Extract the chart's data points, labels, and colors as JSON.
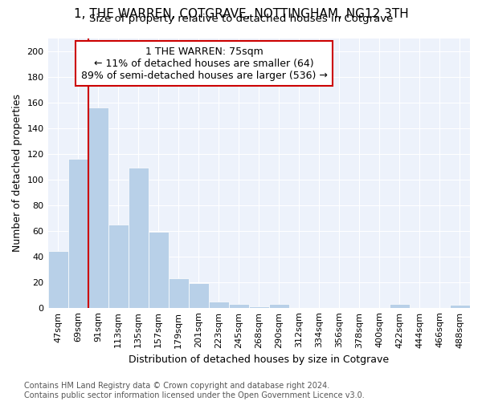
{
  "title": "1, THE WARREN, COTGRAVE, NOTTINGHAM, NG12 3TH",
  "subtitle": "Size of property relative to detached houses in Cotgrave",
  "xlabel": "Distribution of detached houses by size in Cotgrave",
  "ylabel": "Number of detached properties",
  "categories": [
    "47sqm",
    "69sqm",
    "91sqm",
    "113sqm",
    "135sqm",
    "157sqm",
    "179sqm",
    "201sqm",
    "223sqm",
    "245sqm",
    "268sqm",
    "290sqm",
    "312sqm",
    "334sqm",
    "356sqm",
    "378sqm",
    "400sqm",
    "422sqm",
    "444sqm",
    "466sqm",
    "488sqm"
  ],
  "values": [
    44,
    116,
    156,
    65,
    109,
    59,
    23,
    19,
    5,
    3,
    1,
    3,
    0,
    0,
    0,
    0,
    0,
    3,
    0,
    0,
    2
  ],
  "bar_color": "#b8d0e8",
  "highlight_bar_index": 1,
  "highlight_line_color": "#cc0000",
  "annotation_line1": "1 THE WARREN: 75sqm",
  "annotation_line2": "← 11% of detached houses are smaller (64)",
  "annotation_line3": "89% of semi-detached houses are larger (536) →",
  "annotation_box_edge_color": "#cc0000",
  "ylim": [
    0,
    210
  ],
  "yticks": [
    0,
    20,
    40,
    60,
    80,
    100,
    120,
    140,
    160,
    180,
    200
  ],
  "background_color": "#edf2fb",
  "grid_color": "#ffffff",
  "footnote_line1": "Contains HM Land Registry data © Crown copyright and database right 2024.",
  "footnote_line2": "Contains public sector information licensed under the Open Government Licence v3.0.",
  "title_fontsize": 11,
  "subtitle_fontsize": 9.5,
  "axis_label_fontsize": 9,
  "tick_fontsize": 8,
  "annotation_fontsize": 9,
  "footnote_fontsize": 7
}
